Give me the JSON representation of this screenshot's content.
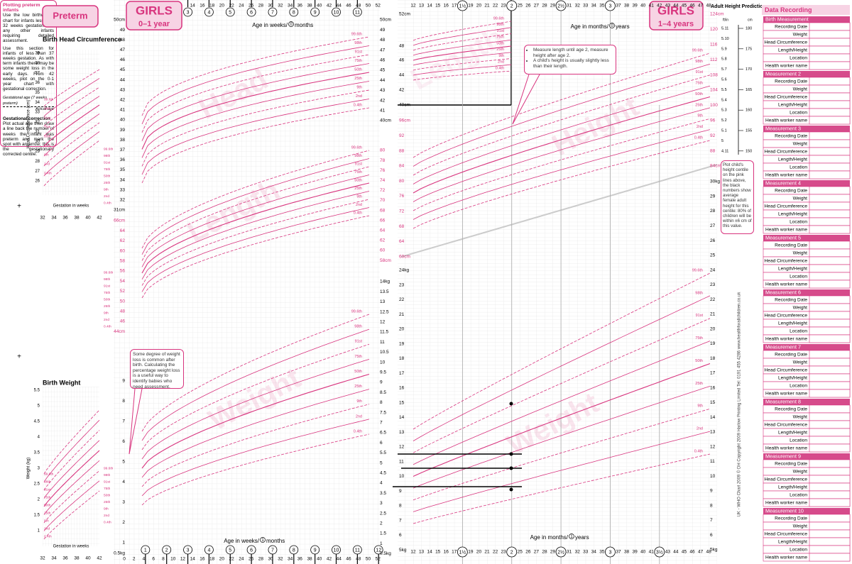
{
  "preterm": {
    "label": "Preterm",
    "head_title": "Birth Head Circumference",
    "head_yaxis": "Head Circumference (cm)",
    "head_yticks": [
      "39",
      "38",
      "37",
      "36",
      "35",
      "34",
      "33",
      "32",
      "31",
      "30",
      "29",
      "28",
      "27",
      "26"
    ],
    "gest_ticks": [
      "32",
      "34",
      "36",
      "38",
      "40",
      "42"
    ],
    "gest_label": "Gestation in weeks",
    "info_title": "Plotting preterm infants",
    "info_p1": "Use the low birthweight chart for infants less than 32 weeks gestation and any other infants requiring detailed assessment.",
    "info_p2": "Use this section for infants of less than 37 weeks gestation. As with term infants there may be some weight loss in the early days. From 42 weeks, plot on the 0-1 year chart with gestational correction.",
    "diagram_gest": "Gestational age (7 weeks preterm)",
    "diagram_actual": "Actual age",
    "correction_title": "Gestational correction",
    "correction_text": "Plot actual age then draw a line back the number of weeks the infant was preterm and mark the spot with an arrow; this is the gestationally corrected centile.",
    "weight_title": "Birth Weight",
    "weight_yaxis": "Weight (kg)",
    "weight_yticks": [
      "5.5",
      "5",
      "4.5",
      "4",
      "3.5",
      "3",
      "2.5",
      "2",
      "1.5",
      "1"
    ]
  },
  "centiles": [
    "99.6th",
    "98th",
    "91st",
    "75th",
    "50th",
    "25th",
    "9th",
    "2nd",
    "0.4th"
  ],
  "chart_0_1": {
    "badge_title": "GIRLS",
    "badge_sub": "0–1 year",
    "top_weeks": [
      14,
      16,
      18,
      20,
      22,
      24,
      26,
      28,
      30,
      32,
      34,
      36,
      38,
      40,
      42,
      44,
      46,
      48,
      50,
      52
    ],
    "bottom_weeks": [
      0,
      2,
      4,
      6,
      8,
      10,
      12,
      14,
      16,
      18,
      20,
      22,
      24,
      26,
      28,
      30,
      32,
      34,
      36,
      38,
      40,
      42,
      44,
      46,
      48,
      50,
      52
    ],
    "top_months": [
      3,
      4,
      5,
      6,
      7,
      8,
      9,
      10,
      11
    ],
    "bottom_months": [
      1,
      2,
      3,
      4,
      5,
      6,
      7,
      8,
      9,
      10,
      11,
      12
    ],
    "axis_top": [
      "Age in weeks/",
      "0",
      "months"
    ],
    "axis_bottom": [
      "Age in weeks/",
      "1",
      "months"
    ],
    "left_head": [
      "50cm",
      "49",
      "48",
      "47",
      "46",
      "45",
      "44",
      "43",
      "42",
      "41",
      "40",
      "39",
      "38",
      "37",
      "36",
      "35",
      "34",
      "33",
      "32",
      "31cm"
    ],
    "right_head": [
      "50cm",
      "49",
      "48",
      "47",
      "46",
      "45",
      "44",
      "43",
      "42",
      "41",
      "40cm"
    ],
    "left_length": [
      "66cm",
      "64",
      "62",
      "60",
      "58",
      "56",
      "54",
      "52",
      "50",
      "48",
      "46",
      "44cm"
    ],
    "right_length": [
      "80",
      "78",
      "76",
      "74",
      "72",
      "70",
      "68",
      "66",
      "64",
      "62",
      "60",
      "58cm"
    ],
    "left_weight": [
      "9",
      "8",
      "7",
      "6",
      "5",
      "4",
      "3",
      "2",
      "1",
      "0.5kg"
    ],
    "right_weight": [
      "14kg",
      "13.5",
      "13",
      "12.5",
      "12",
      "11.5",
      "11",
      "10.5",
      "10",
      "9.5",
      "9",
      "8.5",
      "8",
      "7.5",
      "7",
      "6.5",
      "6",
      "5.5",
      "5",
      "4.5",
      "4",
      "3.5",
      "3",
      "2.5",
      "2",
      "1.5",
      "1",
      "0.5kg"
    ],
    "watermarks": [
      "Head",
      "Length",
      "Weight"
    ],
    "note": "Some degree of weight loss is common after birth. Calculating the percentage weight loss is a useful way to identify babies who need assessment."
  },
  "chart_1_4": {
    "badge_title": "GIRLS",
    "badge_sub": "1–4 years",
    "top_months": [
      12,
      13,
      14,
      15,
      16,
      17,
      19,
      20,
      21,
      22,
      23,
      25,
      26,
      27,
      28,
      29,
      31,
      32,
      33,
      34,
      35,
      37,
      38,
      39,
      40,
      41,
      42,
      43,
      44,
      45,
      46,
      47,
      48
    ],
    "bottom_months": [
      12,
      13,
      14,
      15,
      16,
      17,
      19,
      20,
      21,
      22,
      23,
      25,
      26,
      27,
      28,
      29,
      31,
      32,
      33,
      34,
      35,
      37,
      38,
      39,
      40,
      41,
      43,
      44,
      45,
      46,
      47,
      48
    ],
    "top_years": [
      "1½",
      "2",
      "2½",
      "3"
    ],
    "bottom_years": [
      "1½",
      "2",
      "2½",
      "3",
      "3½"
    ],
    "axis_top": [
      "Age in months/",
      "0",
      "years"
    ],
    "axis_bottom": [
      "Age in months/",
      "1",
      "years"
    ],
    "left_length_top": [
      "52cm",
      "48",
      "46",
      "44",
      "42",
      "40cm"
    ],
    "left_length": [
      "96cm",
      "92",
      "88",
      "84",
      "80",
      "76",
      "72",
      "68",
      "64",
      "60cm"
    ],
    "right_height": [
      "124cm",
      "120",
      "116",
      "112",
      "108",
      "104",
      "100",
      "96",
      "92",
      "88",
      "84cm"
    ],
    "left_weight": [
      "24kg",
      "23",
      "22",
      "21",
      "20",
      "19",
      "18",
      "17",
      "16",
      "15",
      "14",
      "13",
      "12",
      "11",
      "10",
      "9",
      "8",
      "7",
      "6",
      "5kg"
    ],
    "right_weight": [
      "30kg",
      "29",
      "28",
      "27",
      "26",
      "25",
      "24",
      "23",
      "22",
      "21",
      "20",
      "19",
      "18",
      "17",
      "16",
      "15",
      "14",
      "13",
      "12",
      "11",
      "10",
      "9",
      "8",
      "7",
      "6",
      "5kg"
    ],
    "watermarks": [
      "Length",
      "Height",
      "Weight"
    ],
    "notes": [
      "Measure length until age 2, measure height after age 2.",
      "A child's height is usually slightly less than their length."
    ]
  },
  "adult_height": {
    "title": "Adult Height Prediction",
    "ft_label": "ft/in",
    "cm_label": "cm",
    "ft_ticks": [
      "5.11",
      "5.10",
      "5.9",
      "5.8",
      "5.7",
      "5.6",
      "5.5",
      "5.4",
      "5.3",
      "5.2",
      "5.1",
      "5",
      "4.11"
    ],
    "cm_ticks": [
      "180",
      "175",
      "170",
      "165",
      "160",
      "155",
      "150"
    ],
    "note": "Plot child's height centile on the pink lines above, the black numbers show average female adult height for this centile: 80% of children will be within ±6 cm of this value.",
    "footer": "UK - WHO Chart 2009    © DH Copyright 2009    Harlow Printing Limited Tel: 0191 455 4286    www.healthforallchildren.co.uk"
  },
  "data_recording": {
    "title": "Data Recording",
    "sections": [
      {
        "title": "Birth Measurement",
        "fields": [
          "Recording Date",
          "Weight",
          "Head Circumference",
          "Length/Height",
          "Location",
          "Health worker name"
        ]
      },
      {
        "title": "Measurement 2",
        "fields": [
          "Recording Date",
          "Weight",
          "Head Circumference",
          "Length/Height",
          "Location",
          "Health worker name"
        ]
      },
      {
        "title": "Measurement 3",
        "fields": [
          "Recording Date",
          "Weight",
          "Head Circumference",
          "Length/Height",
          "Location",
          "Health worker name"
        ]
      },
      {
        "title": "Measurement 4",
        "fields": [
          "Recording Date",
          "Weight",
          "Head Circumference",
          "Length/Height",
          "Location",
          "Health worker name"
        ]
      },
      {
        "title": "Measurement 5",
        "fields": [
          "Recording Date",
          "Weight",
          "Head Circumference",
          "Length/Height",
          "Location",
          "Health worker name"
        ]
      },
      {
        "title": "Measurement 6",
        "fields": [
          "Recording Date",
          "Weight",
          "Head Circumference",
          "Length/Height",
          "Location",
          "Health worker name"
        ]
      },
      {
        "title": "Measurement 7",
        "fields": [
          "Recording Date",
          "Weight",
          "Head Circumference",
          "Length/Height",
          "Location",
          "Health worker name"
        ]
      },
      {
        "title": "Measurement 8",
        "fields": [
          "Recording Date",
          "Weight",
          "Head Circumference",
          "Length/Height",
          "Location",
          "Health worker name"
        ]
      },
      {
        "title": "Measurement 9",
        "fields": [
          "Recording Date",
          "Weight",
          "Head Circumference",
          "Length/Height",
          "Location",
          "Health worker name"
        ]
      },
      {
        "title": "Measurement 10",
        "fields": [
          "Recording Date",
          "Weight",
          "Head Circumference",
          "Length/Height",
          "Location",
          "Health worker name"
        ]
      }
    ]
  }
}
